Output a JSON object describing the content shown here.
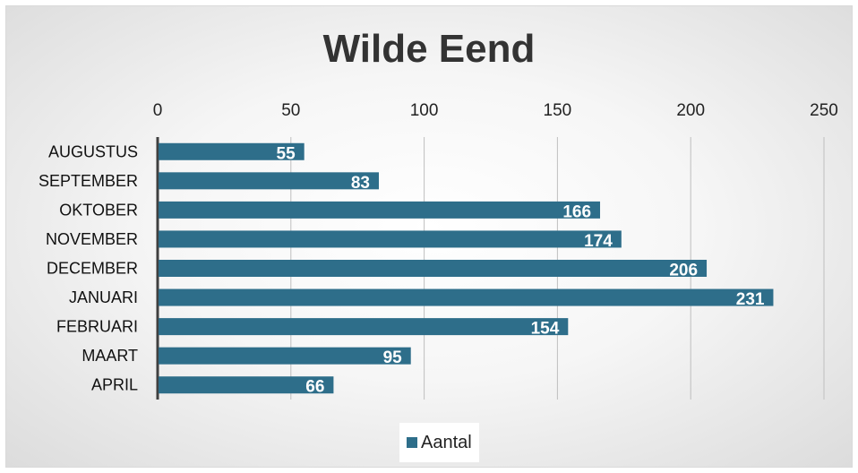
{
  "chart_data": {
    "type": "bar",
    "orientation": "horizontal",
    "title": "Wilde Eend",
    "categories": [
      "AUGUSTUS",
      "SEPTEMBER",
      "OKTOBER",
      "NOVEMBER",
      "DECEMBER",
      "JANUARI",
      "FEBRUARI",
      "MAART",
      "APRIL"
    ],
    "series": [
      {
        "name": "Aantal",
        "values": [
          55,
          83,
          166,
          174,
          206,
          231,
          154,
          95,
          66
        ],
        "color": "#2e6e8a"
      }
    ],
    "xlim": [
      0,
      250
    ],
    "x_ticks": [
      "0",
      "50",
      "100",
      "150",
      "200",
      "250"
    ],
    "x_axis_position": "top",
    "grid": true,
    "legend_position": "bottom",
    "data_labels": true
  }
}
